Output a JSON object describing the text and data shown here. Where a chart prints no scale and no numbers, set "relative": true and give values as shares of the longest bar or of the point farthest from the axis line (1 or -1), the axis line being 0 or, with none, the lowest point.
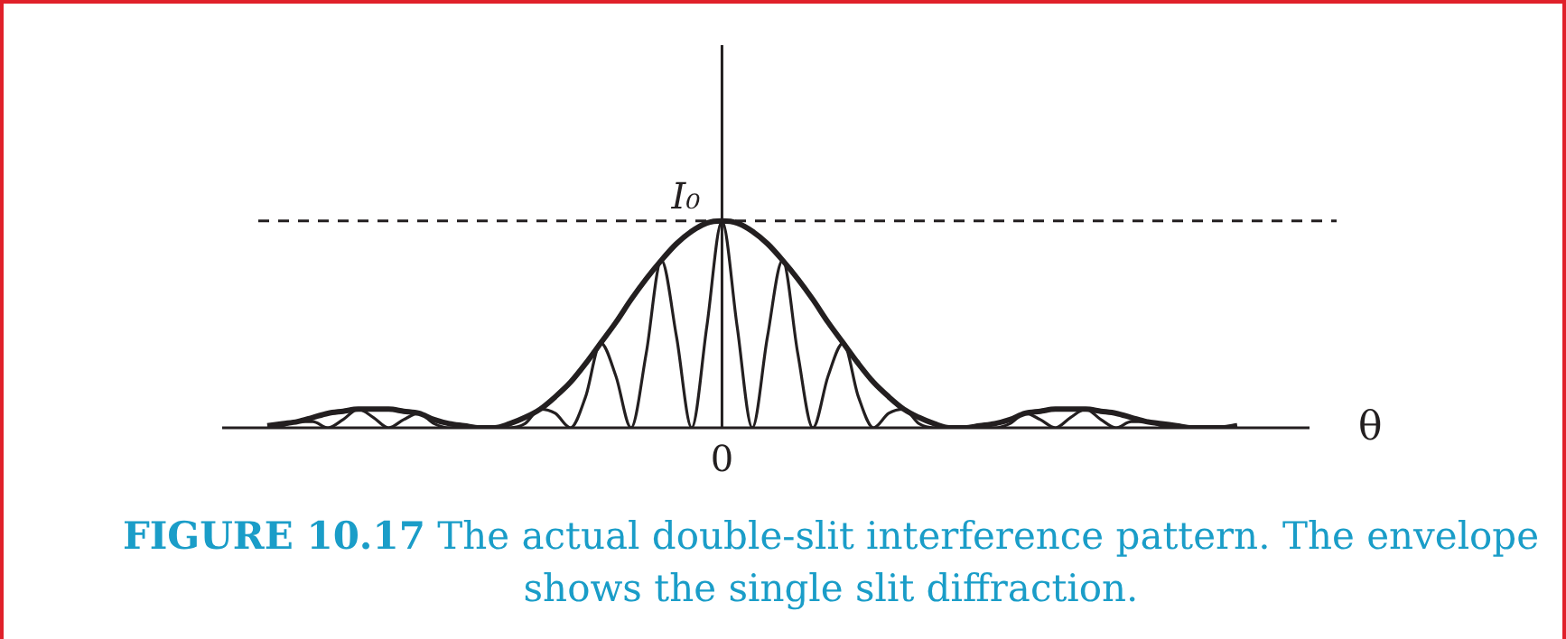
{
  "chart_data": {
    "type": "line",
    "relative": true,
    "xlabel": "θ",
    "legend": false,
    "marker": "none",
    "line_style": "solid",
    "categories": [
      null,
      null,
      null,
      null,
      null,
      null,
      null,
      null,
      null,
      null,
      null,
      null,
      null,
      null,
      null,
      null,
      null,
      null,
      null,
      null,
      null,
      null,
      null,
      null,
      null,
      null,
      null,
      null,
      null,
      null,
      null,
      null,
      null,
      null,
      null,
      null,
      null,
      null,
      null,
      null,
      null,
      null,
      null,
      null,
      null,
      null,
      null,
      null,
      null,
      null,
      null,
      null,
      null,
      null,
      null,
      null,
      null,
      null,
      null,
      null,
      null,
      null,
      null,
      null,
      null
    ],
    "series": [
      {
        "color": "#231f20",
        "values": [
          0.01,
          0.02,
          0.03,
          0.05,
          0.07,
          0.08,
          0.09,
          0.09,
          0.09,
          0.08,
          0.07,
          0.04,
          0.02,
          0.01,
          0,
          0,
          0.02,
          0.05,
          0.09,
          0.15,
          0.22,
          0.31,
          0.41,
          0.51,
          0.62,
          0.72,
          0.81,
          0.89,
          0.95,
          0.99,
          1,
          0.99,
          0.95,
          0.89,
          0.81,
          0.72,
          0.62,
          0.51,
          0.41,
          0.31,
          0.22,
          0.15,
          0.09,
          0.05,
          0.02,
          0,
          0,
          0.01,
          0.02,
          0.04,
          0.07,
          0.08,
          0.09,
          0.09,
          0.09,
          0.08,
          0.07,
          0.05,
          0.03,
          0.02,
          0.01,
          0,
          0,
          0,
          0.01
        ]
      },
      {
        "color": "#231f20",
        "values": [
          0,
          0.01,
          0.03,
          0.03,
          0,
          0.04,
          0.09,
          0.05,
          0,
          0.04,
          0.07,
          0.02,
          0,
          0,
          0,
          0,
          0,
          0.02,
          0.09,
          0.07,
          0,
          0.15,
          0.41,
          0.25,
          0,
          0.36,
          0.81,
          0.44,
          0,
          0.49,
          1,
          0.49,
          0,
          0.44,
          0.81,
          0.36,
          0,
          0.25,
          0.41,
          0.15,
          0,
          0.07,
          0.09,
          0.02,
          0,
          0,
          0,
          0,
          0,
          0.02,
          0.07,
          0.04,
          0,
          0.05,
          0.09,
          0.04,
          0,
          0.03,
          0.03,
          0.01,
          0,
          0,
          0,
          0,
          0
        ]
      }
    ],
    "ref_lines": [
      {
        "axis": "y",
        "value": 1,
        "label": "I₀",
        "line_style": "dashed"
      }
    ],
    "annotations": [
      {
        "text": "0"
      },
      "FIGURE 10.17 The actual double-slit interference pattern. The envelope shows the single slit diffraction."
    ]
  }
}
